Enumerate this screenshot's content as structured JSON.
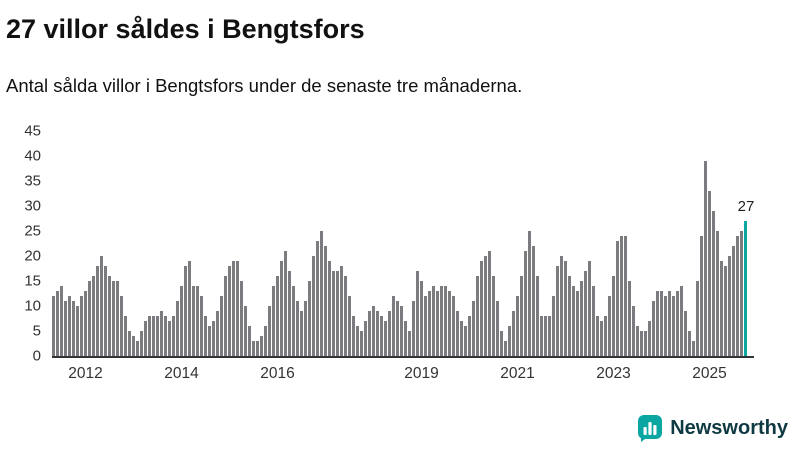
{
  "header": {
    "title": "27 villor såldes i Bengtsfors",
    "subtitle": "Antal sålda villor i Bengtsfors under de senaste tre månaderna."
  },
  "chart_data": {
    "type": "bar",
    "title": "27 villor såldes i Bengtsfors",
    "subtitle": "Antal sålda villor i Bengtsfors under de senaste tre månaderna.",
    "xlabel": "",
    "ylabel": "",
    "ylim": [
      0,
      45
    ],
    "yticks": [
      0,
      5,
      10,
      15,
      20,
      25,
      30,
      35,
      40,
      45
    ],
    "grid": false,
    "legend": false,
    "x_unit": "month",
    "bar_color": "#7b7b80",
    "highlight_color": "#0aa6a1",
    "x_tick_labels": [
      {
        "label": "2012",
        "index": 8
      },
      {
        "label": "2014",
        "index": 32
      },
      {
        "label": "2016",
        "index": 56
      },
      {
        "label": "2019",
        "index": 92
      },
      {
        "label": "2021",
        "index": 116
      },
      {
        "label": "2023",
        "index": 140
      },
      {
        "label": "2025",
        "index": 164
      }
    ],
    "values": [
      12,
      13,
      14,
      11,
      12,
      11,
      10,
      12,
      13,
      15,
      16,
      18,
      20,
      18,
      16,
      15,
      15,
      12,
      8,
      5,
      4,
      3,
      5,
      7,
      8,
      8,
      8,
      9,
      8,
      7,
      8,
      11,
      14,
      18,
      19,
      14,
      14,
      12,
      8,
      6,
      7,
      9,
      12,
      16,
      18,
      19,
      19,
      15,
      10,
      6,
      3,
      3,
      4,
      6,
      10,
      14,
      16,
      19,
      21,
      17,
      14,
      11,
      9,
      11,
      15,
      20,
      23,
      25,
      22,
      19,
      17,
      17,
      18,
      16,
      12,
      8,
      6,
      5,
      7,
      9,
      10,
      9,
      8,
      7,
      9,
      12,
      11,
      10,
      7,
      5,
      11,
      17,
      15,
      12,
      13,
      14,
      13,
      14,
      14,
      13,
      12,
      9,
      7,
      6,
      8,
      11,
      16,
      19,
      20,
      21,
      16,
      11,
      5,
      3,
      6,
      9,
      12,
      16,
      21,
      25,
      22,
      16,
      8,
      8,
      8,
      12,
      18,
      20,
      19,
      16,
      14,
      13,
      15,
      17,
      19,
      14,
      8,
      7,
      8,
      12,
      16,
      23,
      24,
      24,
      15,
      10,
      6,
      5,
      5,
      7,
      11,
      13,
      13,
      12,
      13,
      12,
      13,
      14,
      9,
      5,
      3,
      15,
      24,
      39,
      33,
      29,
      25,
      19,
      18,
      20,
      22,
      24,
      25,
      27
    ],
    "highlight": {
      "index": 173,
      "value": 27,
      "label": "27"
    }
  },
  "footer": {
    "brand": "Newsworthy"
  },
  "colors": {
    "accent": "#0aa6a1",
    "bar": "#7b7b80",
    "axis_text": "#333333",
    "title_text": "#111111",
    "brand_text": "#103a43"
  }
}
